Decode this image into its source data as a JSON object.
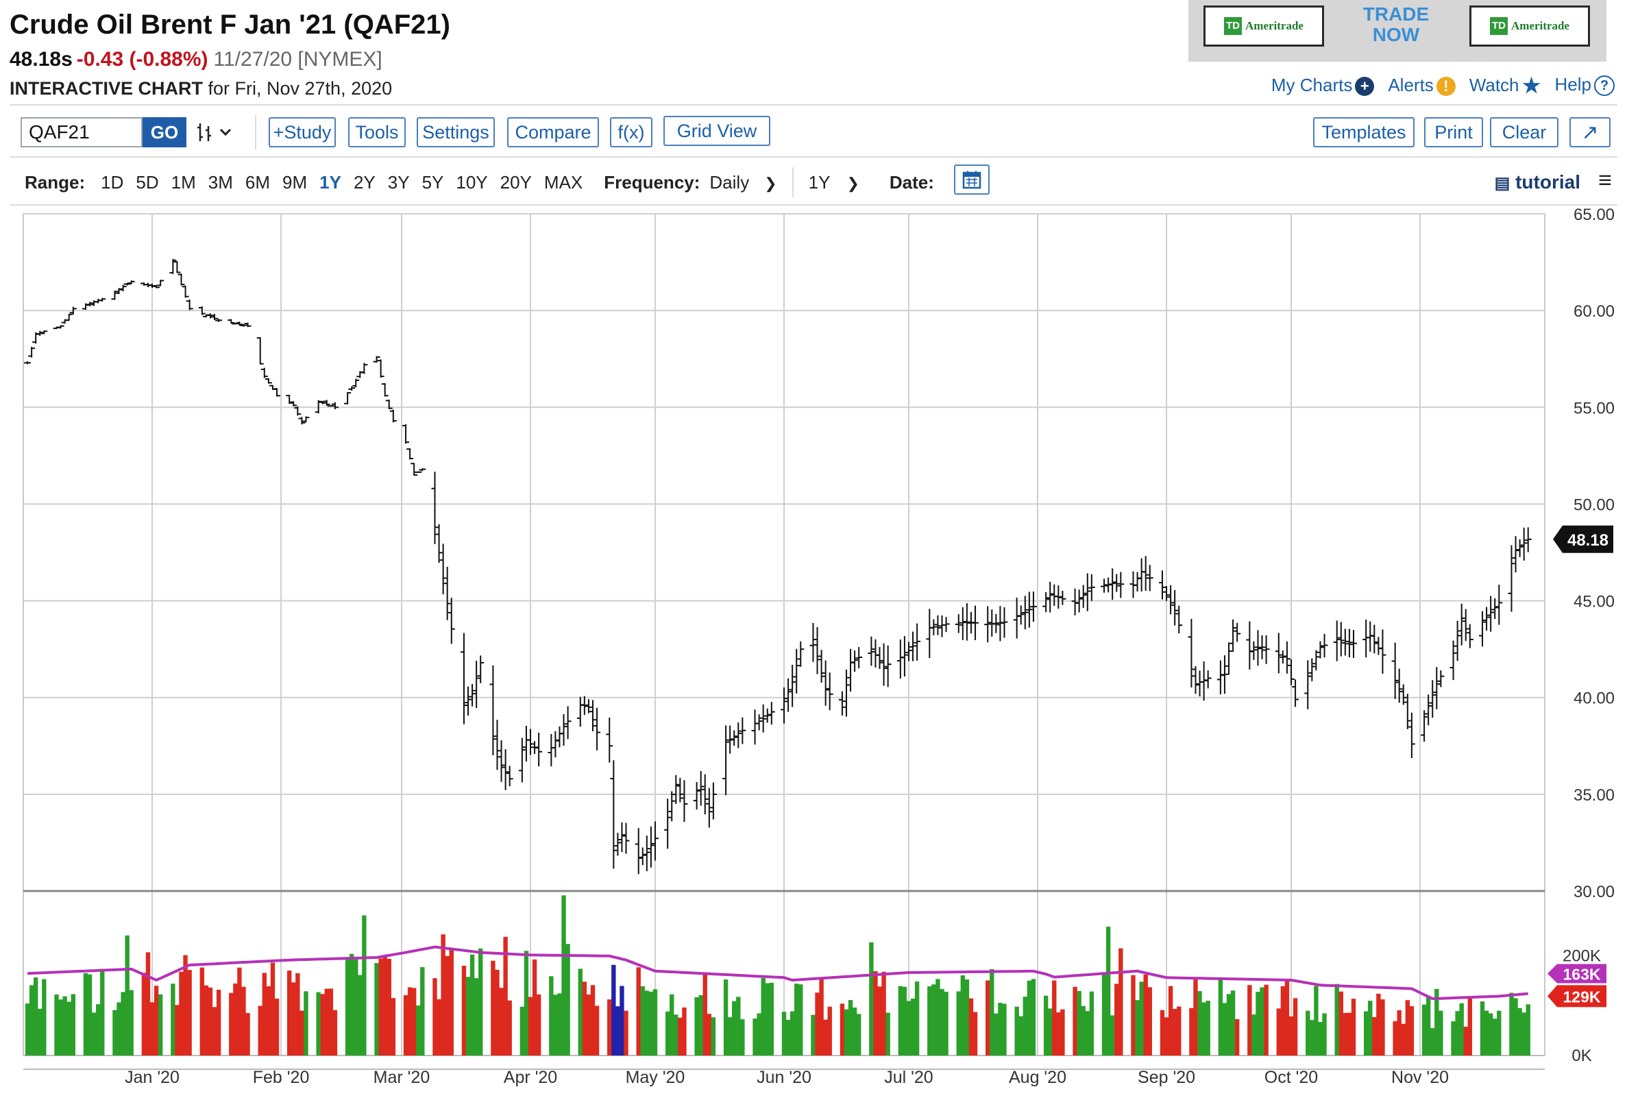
{
  "header": {
    "title": "Crude Oil Brent F Jan '21 (QAF21)",
    "price": "48.18s",
    "change": "-0.43 (-0.88%)",
    "datetime": "11/27/20 [NYMEX]",
    "subtitle_bold": "INTERACTIVE CHART",
    "subtitle_rest": " for Fri, Nov 27th, 2020"
  },
  "ad": {
    "logo_text": "Ameritrade",
    "logo_mark": "TD",
    "trade": "TRADE",
    "now": "NOW"
  },
  "links": {
    "my_charts": "My Charts",
    "alerts": "Alerts",
    "watch": "Watch",
    "help": "Help"
  },
  "toolbar": {
    "symbol": "QAF21",
    "go": "GO",
    "buttons": [
      "+Study",
      "Tools",
      "Settings",
      "Compare",
      "f(x)",
      "Grid View"
    ],
    "right_buttons": [
      "Templates",
      "Print",
      "Clear"
    ]
  },
  "rangebar": {
    "range_label": "Range:",
    "ranges": [
      "1D",
      "5D",
      "1M",
      "3M",
      "6M",
      "9M",
      "1Y",
      "2Y",
      "3Y",
      "5Y",
      "10Y",
      "20Y",
      "MAX"
    ],
    "active": "1Y",
    "frequency_label": "Frequency:",
    "frequency": "Daily",
    "period": "1Y",
    "date_label": "Date:",
    "tutorial": "tutorial"
  },
  "colors": {
    "up": "#2aa02a",
    "down": "#dd2a1f",
    "neutral": "#2222aa",
    "avg": "#b531b8",
    "link": "#1b5fa8"
  },
  "chart_data": {
    "type": "bar",
    "subtype": "ohlc",
    "x_ticks": [
      "Jan '20",
      "Feb '20",
      "Mar '20",
      "Apr '20",
      "May '20",
      "Jun '20",
      "Jul '20",
      "Aug '20",
      "Sep '20",
      "Oct '20",
      "Nov '20"
    ],
    "ylim": [
      30,
      65
    ],
    "yticks": [
      "65.00",
      "60.00",
      "55.00",
      "50.00",
      "45.00",
      "40.00",
      "35.00",
      "30.00"
    ],
    "last_price_label": "48.18",
    "grid": true,
    "price_anchors": [
      [
        "2019-12-02",
        57.3
      ],
      [
        "2019-12-04",
        58.8
      ],
      [
        "2019-12-10",
        59.2
      ],
      [
        "2019-12-13",
        60.1
      ],
      [
        "2019-12-20",
        60.6
      ],
      [
        "2019-12-27",
        61.5
      ],
      [
        "2020-01-02",
        61.2
      ],
      [
        "2020-01-06",
        62.6
      ],
      [
        "2020-01-10",
        60.1
      ],
      [
        "2020-01-17",
        59.5
      ],
      [
        "2020-01-24",
        59.2
      ],
      [
        "2020-01-28",
        56.6
      ],
      [
        "2020-01-31",
        55.6
      ],
      [
        "2020-02-04",
        55.1
      ],
      [
        "2020-02-06",
        54.2
      ],
      [
        "2020-02-10",
        55.3
      ],
      [
        "2020-02-14",
        55.0
      ],
      [
        "2020-02-18",
        56.0
      ],
      [
        "2020-02-21",
        57.2
      ],
      [
        "2020-02-24",
        57.6
      ],
      [
        "2020-02-26",
        55.6
      ],
      [
        "2020-02-28",
        54.3
      ],
      [
        "2020-03-02",
        53.2
      ],
      [
        "2020-03-04",
        51.5
      ],
      [
        "2020-03-06",
        51.8
      ],
      [
        "2020-03-09",
        48.8
      ],
      [
        "2020-03-16",
        39.6
      ],
      [
        "2020-03-18",
        40.2
      ],
      [
        "2020-03-20",
        41.8
      ],
      [
        "2020-03-23",
        38.0
      ],
      [
        "2020-03-25",
        36.5
      ],
      [
        "2020-03-27",
        35.8
      ],
      [
        "2020-03-31",
        37.8
      ],
      [
        "2020-04-03",
        37.2
      ],
      [
        "2020-04-06",
        37.4
      ],
      [
        "2020-04-09",
        38.5
      ],
      [
        "2020-04-13",
        39.6
      ],
      [
        "2020-04-15",
        39.5
      ],
      [
        "2020-04-17",
        38.2
      ],
      [
        "2020-04-20",
        37.5
      ],
      [
        "2020-04-21",
        32.1
      ],
      [
        "2020-04-23",
        32.9
      ],
      [
        "2020-04-27",
        31.7
      ],
      [
        "2020-04-29",
        32.0
      ],
      [
        "2020-05-04",
        33.8
      ],
      [
        "2020-05-06",
        35.5
      ],
      [
        "2020-05-08",
        34.5
      ],
      [
        "2020-05-12",
        35.4
      ],
      [
        "2020-05-14",
        34.1
      ],
      [
        "2020-05-18",
        37.7
      ],
      [
        "2020-05-22",
        38.3
      ],
      [
        "2020-05-27",
        38.9
      ],
      [
        "2020-06-01",
        39.8
      ],
      [
        "2020-06-03",
        40.8
      ],
      [
        "2020-06-05",
        42.5
      ],
      [
        "2020-06-08",
        43.0
      ],
      [
        "2020-06-11",
        40.4
      ],
      [
        "2020-06-15",
        39.5
      ],
      [
        "2020-06-17",
        41.8
      ],
      [
        "2020-06-22",
        42.5
      ],
      [
        "2020-06-25",
        41.6
      ],
      [
        "2020-06-30",
        42.2
      ],
      [
        "2020-07-06",
        43.6
      ],
      [
        "2020-07-10",
        43.8
      ],
      [
        "2020-07-15",
        43.9
      ],
      [
        "2020-07-20",
        43.8
      ],
      [
        "2020-07-24",
        43.9
      ],
      [
        "2020-07-29",
        44.4
      ],
      [
        "2020-08-04",
        45.3
      ],
      [
        "2020-08-07",
        45.1
      ],
      [
        "2020-08-10",
        44.9
      ],
      [
        "2020-08-14",
        45.7
      ],
      [
        "2020-08-19",
        45.9
      ],
      [
        "2020-08-24",
        45.8
      ],
      [
        "2020-08-26",
        46.5
      ],
      [
        "2020-08-31",
        45.7
      ],
      [
        "2020-09-03",
        44.5
      ],
      [
        "2020-09-08",
        40.7
      ],
      [
        "2020-09-11",
        41.0
      ],
      [
        "2020-09-15",
        41.2
      ],
      [
        "2020-09-17",
        43.6
      ],
      [
        "2020-09-21",
        42.4
      ],
      [
        "2020-09-24",
        42.6
      ],
      [
        "2020-09-30",
        42.0
      ],
      [
        "2020-10-02",
        39.9
      ],
      [
        "2020-10-05",
        41.1
      ],
      [
        "2020-10-08",
        42.6
      ],
      [
        "2020-10-12",
        43.0
      ],
      [
        "2020-10-16",
        42.8
      ],
      [
        "2020-10-20",
        43.2
      ],
      [
        "2020-10-23",
        42.2
      ],
      [
        "2020-10-28",
        40.0
      ],
      [
        "2020-10-30",
        37.6
      ],
      [
        "2020-11-02",
        39.0
      ],
      [
        "2020-11-05",
        40.7
      ],
      [
        "2020-11-09",
        42.3
      ],
      [
        "2020-11-11",
        44.1
      ],
      [
        "2020-11-13",
        43.0
      ],
      [
        "2020-11-16",
        43.9
      ],
      [
        "2020-11-20",
        44.9
      ],
      [
        "2020-11-24",
        47.6
      ],
      [
        "2020-11-27",
        48.18
      ]
    ],
    "volume": {
      "yticks": [
        "200K",
        "0K"
      ],
      "ylim": [
        0,
        300000
      ],
      "avg_label": "163K",
      "last_label": "129K",
      "avg_anchors": [
        [
          "2019-12-01",
          163
        ],
        [
          "2019-12-27",
          172
        ],
        [
          "2020-01-02",
          150
        ],
        [
          "2020-01-10",
          180
        ],
        [
          "2020-02-03",
          190
        ],
        [
          "2020-02-24",
          195
        ],
        [
          "2020-03-02",
          205
        ],
        [
          "2020-03-09",
          216
        ],
        [
          "2020-03-20",
          205
        ],
        [
          "2020-04-01",
          200
        ],
        [
          "2020-04-20",
          198
        ],
        [
          "2020-04-24",
          190
        ],
        [
          "2020-05-01",
          168
        ],
        [
          "2020-06-01",
          155
        ],
        [
          "2020-06-03",
          150
        ],
        [
          "2020-07-01",
          165
        ],
        [
          "2020-08-01",
          168
        ],
        [
          "2020-08-05",
          156
        ],
        [
          "2020-08-25",
          168
        ],
        [
          "2020-09-01",
          155
        ],
        [
          "2020-10-01",
          150
        ],
        [
          "2020-10-08",
          140
        ],
        [
          "2020-10-30",
          133
        ],
        [
          "2020-11-04",
          113
        ],
        [
          "2020-11-20",
          118
        ],
        [
          "2020-11-27",
          123
        ]
      ]
    }
  }
}
